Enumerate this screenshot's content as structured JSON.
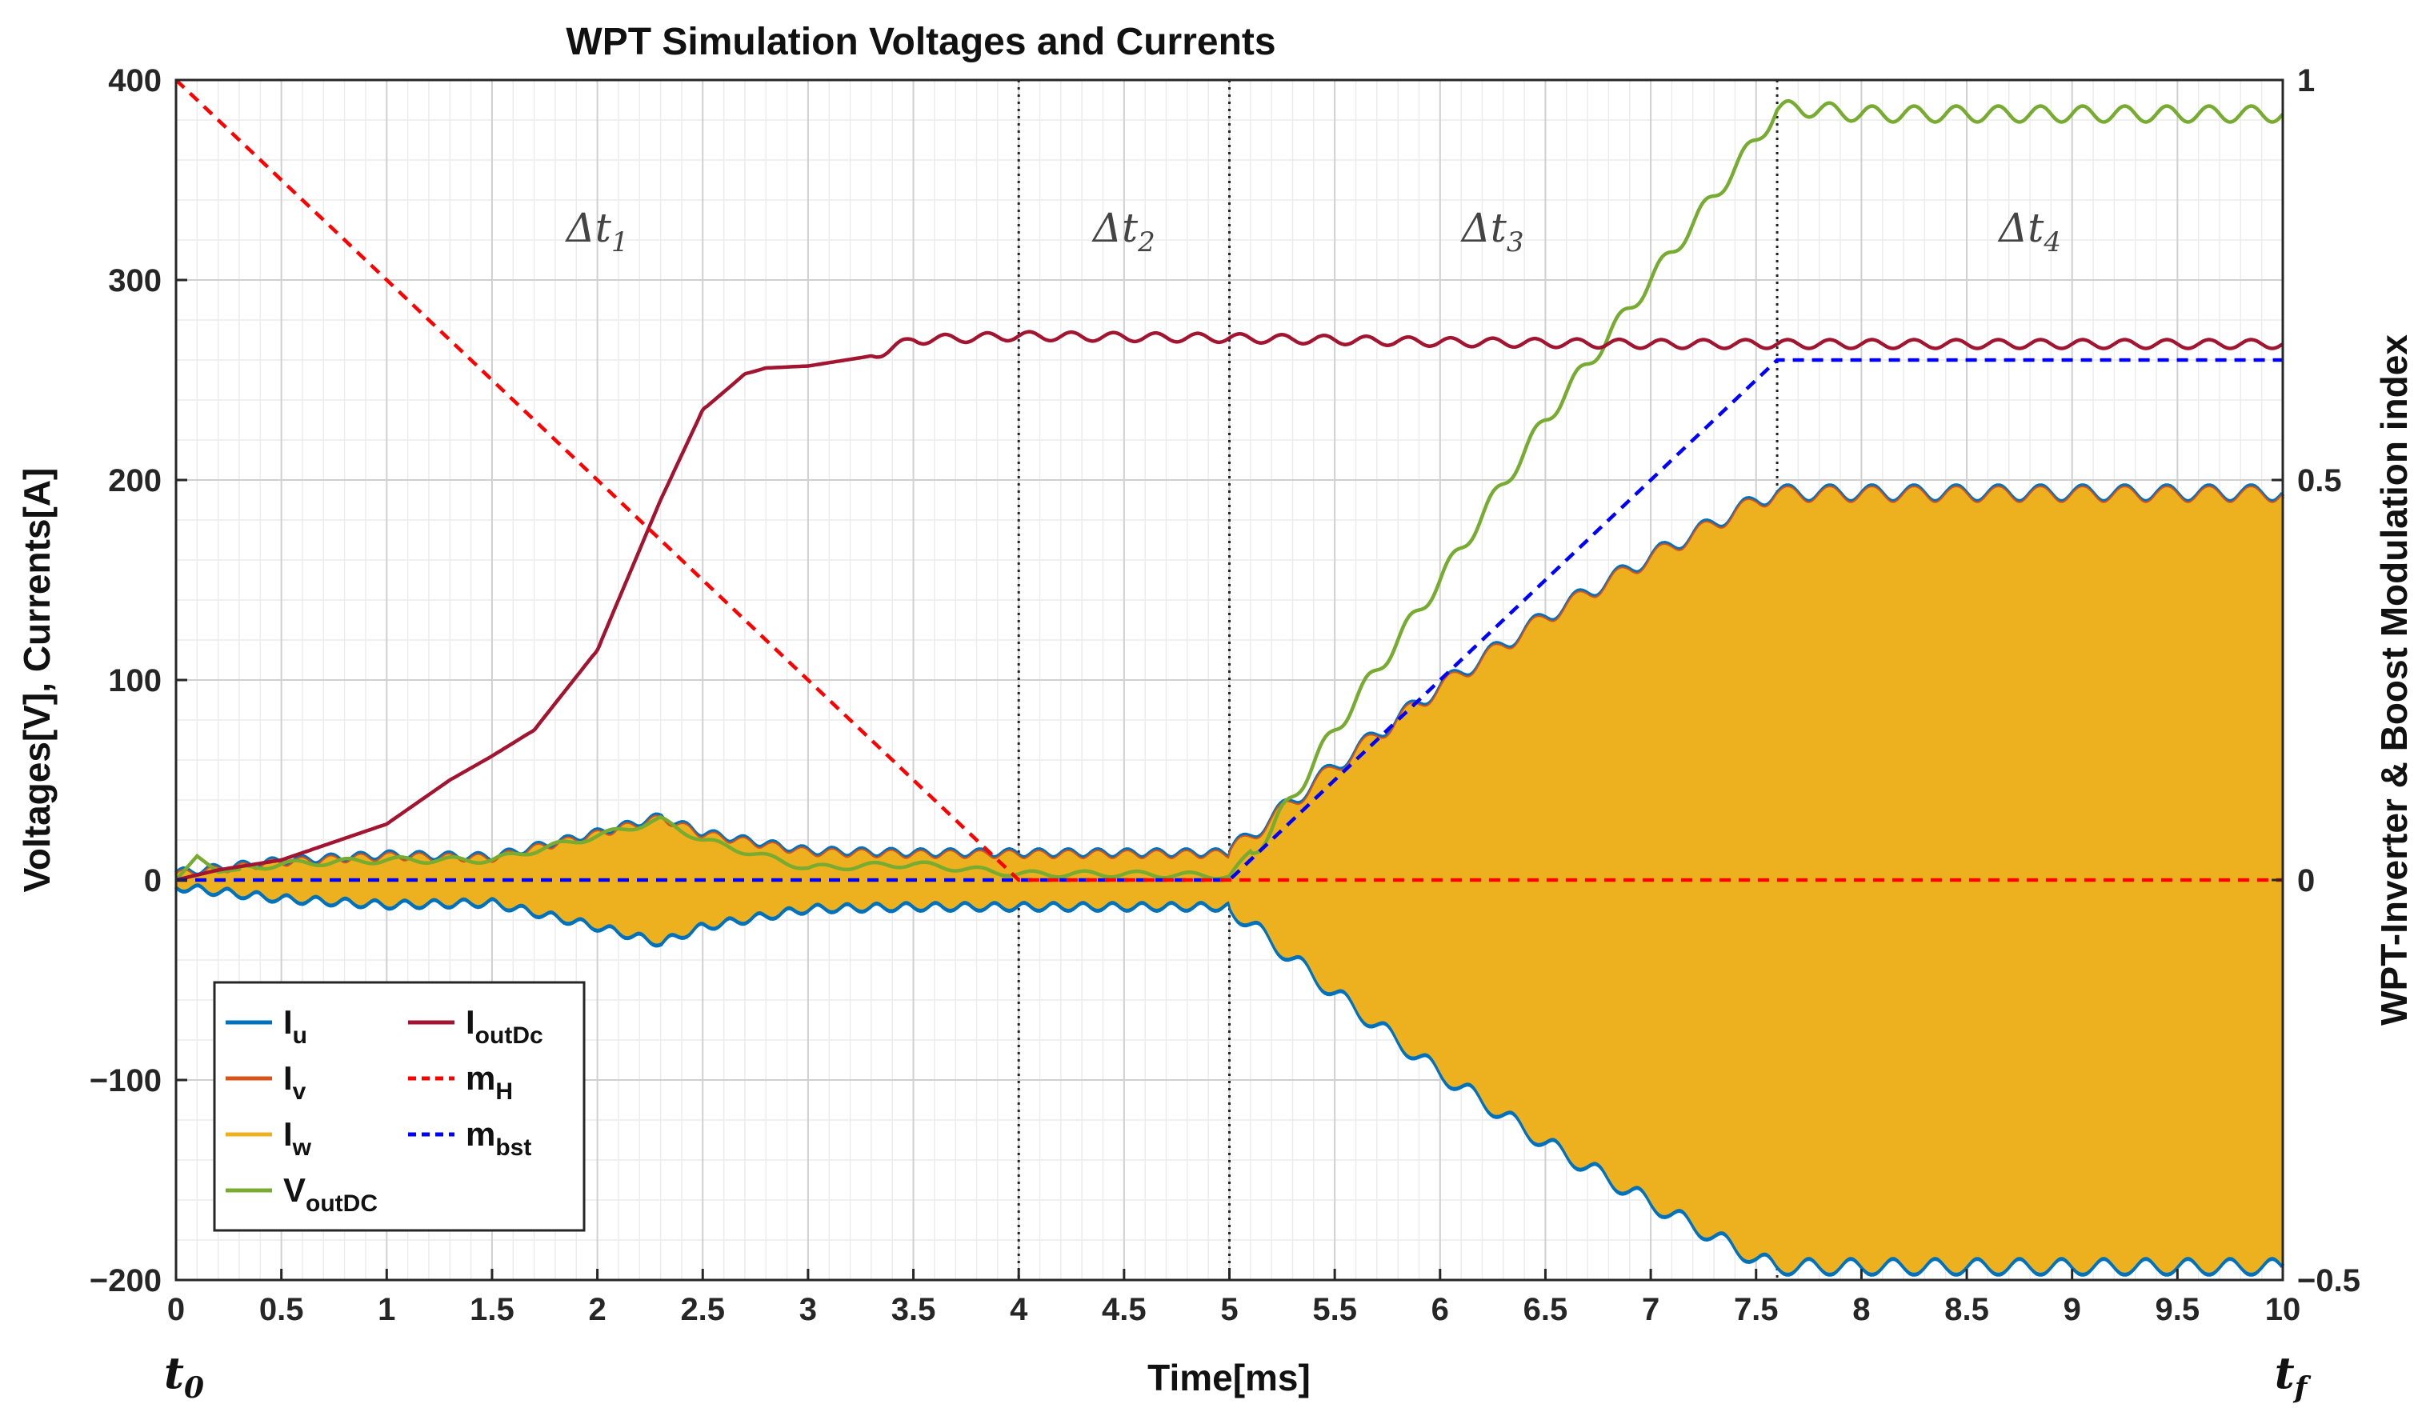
{
  "chart_data": {
    "type": "line",
    "title": "WPT Simulation Voltages and Currents",
    "xlabel": "Time[ms]",
    "ylabel": "Voltages[V], Currents[A]",
    "ylabel_right": "WPT-Inverter & Boost Modulation index",
    "xlim": [
      0,
      10
    ],
    "ylim": [
      -200,
      400
    ],
    "ylim_right": [
      -0.5,
      1
    ],
    "xticks": [
      "0",
      "0.5",
      "1",
      "1.5",
      "2",
      "2.5",
      "3",
      "3.5",
      "4",
      "4.5",
      "5",
      "5.5",
      "6",
      "6.5",
      "7",
      "7.5",
      "8",
      "8.5",
      "9",
      "9.5",
      "10"
    ],
    "yticks": [
      "400",
      "300",
      "200",
      "100",
      "0",
      "−100",
      "−200"
    ],
    "yticks_right": [
      "1",
      "0.5",
      "0",
      "−0.5"
    ],
    "grid": true,
    "legend_position": "bottom-left",
    "boundary_lines_x": [
      4,
      5,
      7.6
    ],
    "phase_labels": [
      {
        "text": "Δt",
        "sub": "1",
        "x": 2
      },
      {
        "text": "Δt",
        "sub": "2",
        "x": 4.5
      },
      {
        "text": "Δt",
        "sub": "3",
        "x": 6.25
      },
      {
        "text": "Δt",
        "sub": "4",
        "x": 8.8
      }
    ],
    "time_marks": [
      {
        "text": "t",
        "sub": "0",
        "x": 0
      },
      {
        "text": "t",
        "sub": "f",
        "x": 10
      }
    ],
    "series": [
      {
        "name": "I",
        "sub": "u",
        "color": "#0072BD",
        "style": "solid",
        "axis": "left"
      },
      {
        "name": "I",
        "sub": "v",
        "color": "#D95319",
        "style": "solid",
        "axis": "left"
      },
      {
        "name": "I",
        "sub": "w",
        "color": "#EDB120",
        "style": "solid",
        "axis": "left",
        "envelope": {
          "x": [
            0,
            0.5,
            1,
            1.5,
            2,
            2.3,
            2.5,
            3,
            3.5,
            4,
            4.5,
            5,
            5.5,
            6,
            6.5,
            7,
            7.5,
            7.6,
            8,
            9,
            10
          ],
          "amplitude": [
            2,
            8,
            11,
            10,
            22,
            30,
            22,
            13,
            12,
            12,
            12,
            12,
            55,
            95,
            130,
            160,
            188,
            192,
            192,
            192,
            192
          ]
        }
      },
      {
        "name": "V",
        "sub": "outDC",
        "color": "#77AC30",
        "style": "solid",
        "axis": "left",
        "x": [
          0,
          0.1,
          0.2,
          0.5,
          1,
          1.5,
          2,
          2.3,
          2.5,
          3,
          3.5,
          4,
          4.5,
          5,
          5.2,
          5.5,
          6,
          6.5,
          7,
          7.5,
          7.6,
          7.7,
          8,
          9,
          10
        ],
        "values": [
          0,
          12,
          4,
          8,
          10,
          10,
          22,
          30,
          20,
          6,
          8,
          3,
          3,
          2,
          25,
          75,
          150,
          230,
          300,
          370,
          385,
          386,
          383,
          383,
          383
        ]
      },
      {
        "name": "I",
        "sub": "outDc",
        "color": "#A2142F",
        "style": "solid",
        "axis": "left",
        "x": [
          0,
          0.2,
          0.5,
          1,
          1.3,
          1.5,
          1.7,
          2,
          2.3,
          2.5,
          2.7,
          2.8,
          3,
          3.3,
          3.5,
          4,
          5,
          6,
          7,
          7.6,
          8,
          9,
          10
        ],
        "values": [
          0,
          5,
          10,
          28,
          50,
          62,
          75,
          115,
          190,
          235,
          253,
          256,
          257,
          262,
          270,
          272,
          271,
          269,
          268,
          268,
          268,
          268,
          268
        ]
      },
      {
        "name": "m",
        "sub": "H",
        "color": "#FF0000",
        "style": "dashed",
        "axis": "right",
        "x": [
          0,
          4,
          10
        ],
        "values": [
          1,
          0,
          0
        ]
      },
      {
        "name": "m",
        "sub": "bst",
        "color": "#0000FF",
        "style": "dashed",
        "axis": "right",
        "x": [
          0,
          5,
          7.6,
          10
        ],
        "values": [
          0,
          0,
          0.65,
          0.65
        ]
      }
    ]
  }
}
